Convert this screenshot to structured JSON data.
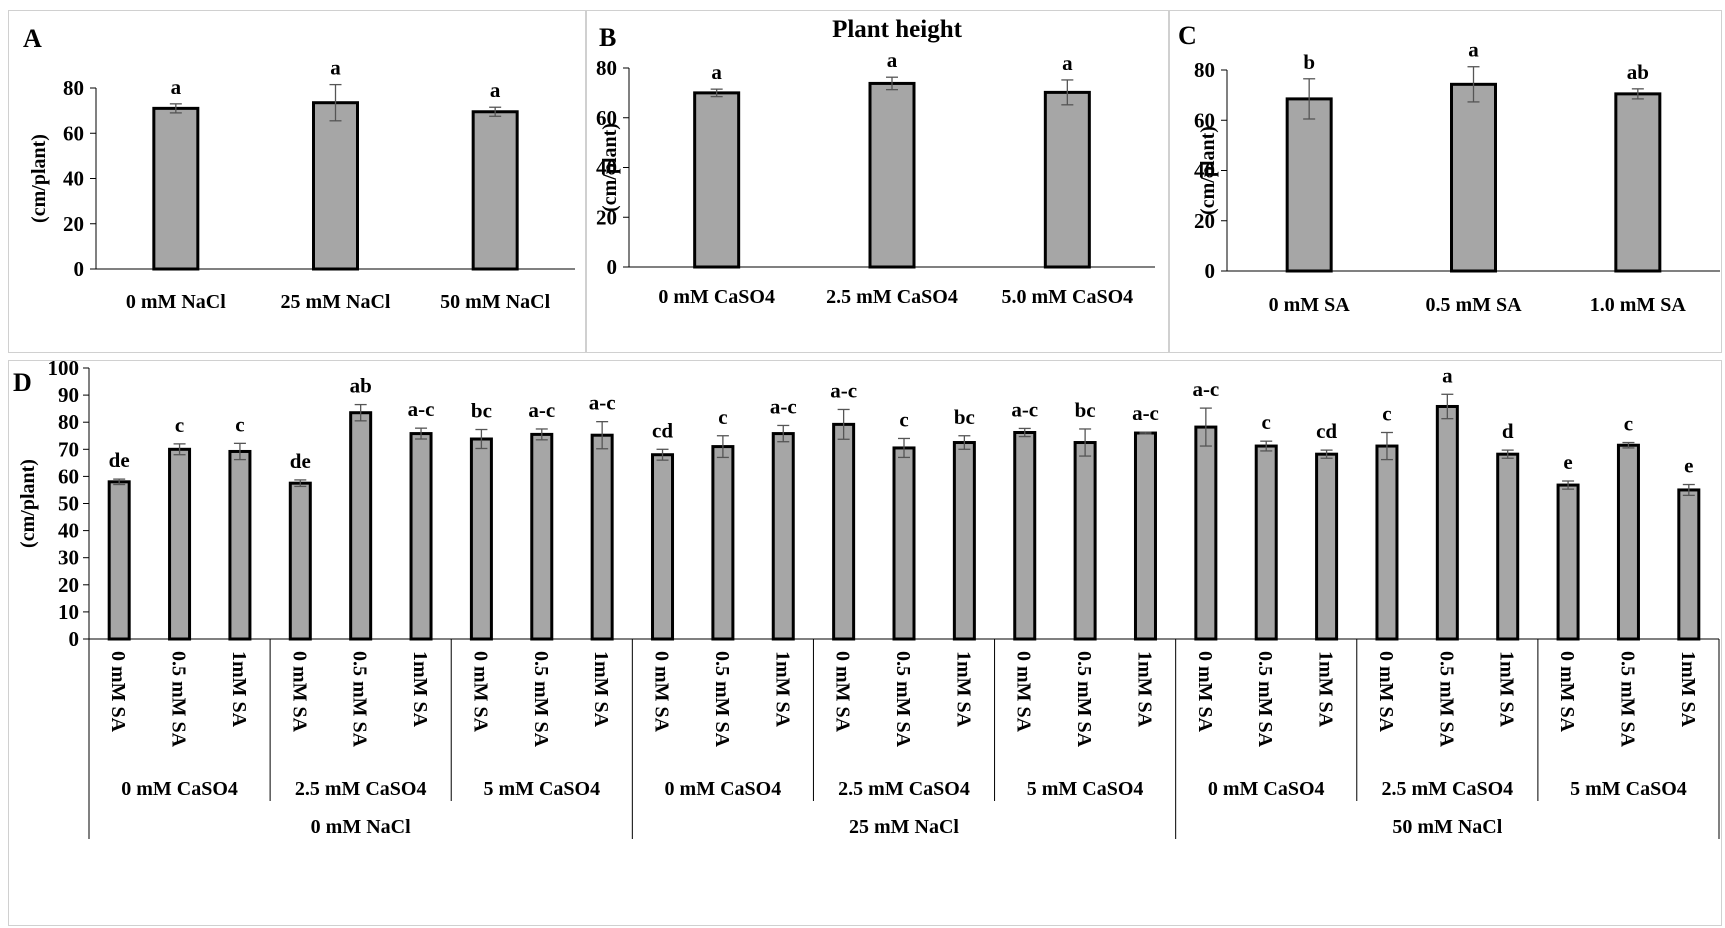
{
  "figure": {
    "title": "Plant height"
  },
  "chart_data": [
    {
      "id": "A",
      "type": "bar",
      "panel_label": "A",
      "title": "",
      "ylabel": "(cm/plant)",
      "ylim": [
        0,
        80
      ],
      "yticks": [
        0,
        20,
        40,
        60,
        80
      ],
      "categories": [
        "0 mM NaCl",
        "25 mM NaCl",
        "50 mM NaCl"
      ],
      "values": [
        71,
        73.5,
        69.5
      ],
      "errors": [
        2,
        8,
        2
      ],
      "letters": [
        "a",
        "a",
        "a"
      ]
    },
    {
      "id": "B",
      "type": "bar",
      "panel_label": "B",
      "title": "Plant height",
      "ylabel": "(cm/plant)",
      "ylim": [
        0,
        80
      ],
      "yticks": [
        0,
        20,
        40,
        60,
        80
      ],
      "categories": [
        "0 mM CaSO4",
        "2.5 mM CaSO4",
        "5.0 mM CaSO4"
      ],
      "values": [
        70,
        73.8,
        70.2
      ],
      "errors": [
        1.5,
        2.5,
        5
      ],
      "letters": [
        "a",
        "a",
        "a"
      ]
    },
    {
      "id": "C",
      "type": "bar",
      "panel_label": "C",
      "title": "",
      "ylabel": "(cm/plant)",
      "ylim": [
        0,
        80
      ],
      "yticks": [
        0,
        20,
        40,
        60,
        80
      ],
      "categories": [
        "0 mM SA",
        "0.5 mM SA",
        "1.0 mM SA"
      ],
      "values": [
        68.5,
        74.3,
        70.5
      ],
      "errors": [
        8,
        7,
        2
      ],
      "letters": [
        "b",
        "a",
        "ab"
      ]
    },
    {
      "id": "D",
      "type": "bar",
      "panel_label": "D",
      "title": "",
      "ylabel": "(cm/plant)",
      "ylim": [
        0,
        100
      ],
      "yticks": [
        0,
        10,
        20,
        30,
        40,
        50,
        60,
        70,
        80,
        90,
        100
      ],
      "categories": [
        "0 mM SA",
        "0.5 mM SA",
        "1mM SA",
        "0 mM SA",
        "0.5 mM SA",
        "1mM SA",
        "0 mM SA",
        "0.5 mM SA",
        "1mM SA",
        "0 mM SA",
        "0.5 mM SA",
        "1mM SA",
        "0 mM SA",
        "0.5 mM SA",
        "1mM SA",
        "0 mM SA",
        "0.5 mM SA",
        "1mM SA",
        "0 mM SA",
        "0.5 mM SA",
        "1mM SA",
        "0 mM SA",
        "0.5 mM SA",
        "1mM SA",
        "0 mM SA",
        "0.5 mM SA",
        "1mM SA"
      ],
      "values": [
        58,
        70,
        69.2,
        57.5,
        83.5,
        75.8,
        73.8,
        75.5,
        75.2,
        68,
        71,
        75.8,
        79.2,
        70.5,
        72.5,
        76.2,
        72.5,
        76,
        78.2,
        71.2,
        68.2,
        71.2,
        85.8,
        68.2,
        56.8,
        71.5,
        55
      ],
      "errors": [
        1,
        2,
        3,
        1.2,
        3,
        2,
        3.5,
        2,
        5,
        2,
        4,
        3,
        5.5,
        3.5,
        2.5,
        1.5,
        5,
        0.3,
        7,
        1.8,
        1.5,
        5,
        4.5,
        1.5,
        1.5,
        1,
        2
      ],
      "letters": [
        "de",
        "c",
        "c",
        "de",
        "ab",
        "a-c",
        "bc",
        "a-c",
        "a-c",
        "cd",
        "c",
        "a-c",
        "a-c",
        "c",
        "bc",
        "a-c",
        "bc",
        "a-c",
        "a-c",
        "c",
        "cd",
        "c",
        "a",
        "d",
        "e",
        "c",
        "e"
      ],
      "group_level1": [
        "0 mM CaSO4",
        "2.5 mM CaSO4",
        "5 mM CaSO4",
        "0 mM CaSO4",
        "2.5 mM CaSO4",
        "5 mM CaSO4",
        "0 mM CaSO4",
        "2.5 mM CaSO4",
        "5 mM CaSO4"
      ],
      "group_level2": [
        "0 mM NaCl",
        "25 mM NaCl",
        "50 mM NaCl"
      ]
    }
  ]
}
